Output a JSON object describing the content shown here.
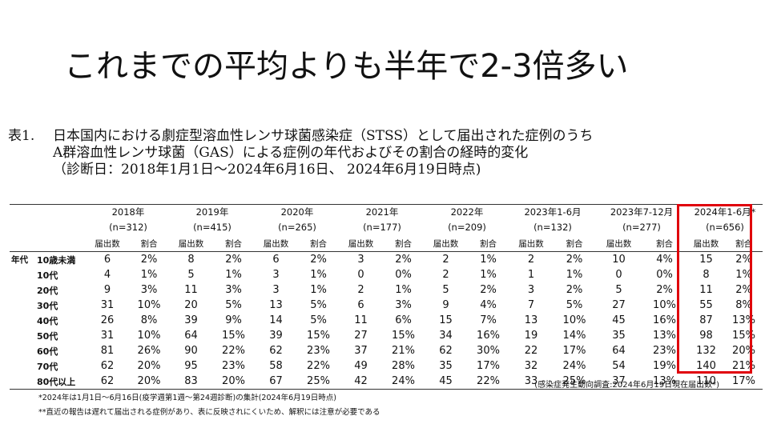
{
  "title": "これまでの平均よりも半年で2-3倍多い",
  "caption": {
    "label": "表1.",
    "line1": "日本国内における劇症型溶血性レンサ球菌感染症（STSS）として届出された症例のうち",
    "line2": "A群溶血性レンサ球菌（GAS）による症例の年代およびその割合の経時的変化",
    "line3": "（診断日：2018年1月1日〜2024年6月16日、 2024年6月19日時点)"
  },
  "table": {
    "row_header_label": "年代",
    "col_labels": {
      "count": "届出数",
      "ratio": "割合"
    },
    "periods": [
      {
        "label": "2018年",
        "n": "(n=312)"
      },
      {
        "label": "2019年",
        "n": "(n=415)"
      },
      {
        "label": "2020年",
        "n": "(n=265)"
      },
      {
        "label": "2021年",
        "n": "(n=177)"
      },
      {
        "label": "2022年",
        "n": "(n=209)"
      },
      {
        "label": "2023年1-6月",
        "n": "(n=132)"
      },
      {
        "label": "2023年7-12月",
        "n": "(n=277)"
      },
      {
        "label": "2024年1-6月*",
        "n": "(n=656)"
      }
    ],
    "rows": [
      {
        "age": "10歳未満",
        "values": [
          "6",
          "2%",
          "8",
          "2%",
          "6",
          "2%",
          "3",
          "2%",
          "2",
          "1%",
          "2",
          "2%",
          "10",
          "4%",
          "15",
          "2%"
        ]
      },
      {
        "age": "10代",
        "values": [
          "4",
          "1%",
          "5",
          "1%",
          "3",
          "1%",
          "0",
          "0%",
          "2",
          "1%",
          "1",
          "1%",
          "0",
          "0%",
          "8",
          "1%"
        ]
      },
      {
        "age": "20代",
        "values": [
          "9",
          "3%",
          "11",
          "3%",
          "3",
          "1%",
          "2",
          "1%",
          "5",
          "2%",
          "3",
          "2%",
          "5",
          "2%",
          "11",
          "2%"
        ]
      },
      {
        "age": "30代",
        "values": [
          "31",
          "10%",
          "20",
          "5%",
          "13",
          "5%",
          "6",
          "3%",
          "9",
          "4%",
          "7",
          "5%",
          "27",
          "10%",
          "55",
          "8%"
        ]
      },
      {
        "age": "40代",
        "values": [
          "26",
          "8%",
          "39",
          "9%",
          "14",
          "5%",
          "11",
          "6%",
          "15",
          "7%",
          "13",
          "10%",
          "45",
          "16%",
          "87",
          "13%"
        ]
      },
      {
        "age": "50代",
        "values": [
          "31",
          "10%",
          "64",
          "15%",
          "39",
          "15%",
          "27",
          "15%",
          "34",
          "16%",
          "19",
          "14%",
          "35",
          "13%",
          "98",
          "15%"
        ]
      },
      {
        "age": "60代",
        "values": [
          "81",
          "26%",
          "90",
          "22%",
          "62",
          "23%",
          "37",
          "21%",
          "62",
          "30%",
          "22",
          "17%",
          "64",
          "23%",
          "132",
          "20%"
        ]
      },
      {
        "age": "70代",
        "values": [
          "62",
          "20%",
          "95",
          "23%",
          "58",
          "22%",
          "49",
          "28%",
          "35",
          "17%",
          "32",
          "24%",
          "54",
          "19%",
          "140",
          "21%"
        ]
      },
      {
        "age": "80代以上",
        "values": [
          "62",
          "20%",
          "83",
          "20%",
          "67",
          "25%",
          "42",
          "24%",
          "45",
          "22%",
          "33",
          "25%",
          "37",
          "13%",
          "110",
          "17%"
        ]
      }
    ]
  },
  "source": "(感染症発生動向調査:2024年6月19日現在届出数*)",
  "notes": [
    "*2024年は1月1日〜6月16日(疫学週第1週〜第24週診断)の集計(2024年6月19日時点)",
    "**直近の報告は遅れて届出される症例があり、表に反映されにくいため、解釈には注意が必要である"
  ],
  "colors": {
    "highlight": "#e0000b"
  }
}
